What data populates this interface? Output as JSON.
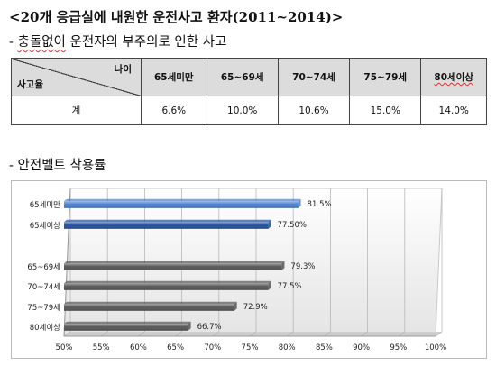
{
  "header": {
    "title": "<20개 응급실에 내원한 운전사고 환자(2011~2014)>",
    "subtitle_prefix": "- ",
    "subtitle_squiggle": "충돌없이",
    "subtitle_rest": " 운전자의 부주의로 인한 사고"
  },
  "table": {
    "corner_top": "나이",
    "corner_bottom": "사고율",
    "headers": [
      "65세미만",
      "65~69세",
      "70~74세",
      "75~79세",
      "80세이상"
    ],
    "row_label": "계",
    "values": [
      "6.6%",
      "10.0%",
      "10.6%",
      "15.0%",
      "14.0%"
    ]
  },
  "section2": {
    "title": "- 안전벨트 착용률"
  },
  "chart_data": {
    "type": "bar",
    "orientation": "horizontal",
    "title": "",
    "xlim": [
      50,
      100
    ],
    "xticks": [
      "50%",
      "55%",
      "60%",
      "65%",
      "70%",
      "75%",
      "80%",
      "85%",
      "90%",
      "95%",
      "100%"
    ],
    "grid": true,
    "categories": [
      "65세미만",
      "65세이상",
      "65~69세",
      "70~74세",
      "75~79세",
      "80세이상"
    ],
    "values": [
      81.5,
      77.5,
      79.3,
      77.5,
      72.9,
      66.7
    ],
    "value_labels": [
      "81.5%",
      "77.50%",
      "79.3%",
      "77.5%",
      "72.9%",
      "66.7%"
    ],
    "bar_colors": [
      "#4a7fd0",
      "#1f4f9c",
      "#555555",
      "#555555",
      "#555555",
      "#555555"
    ]
  }
}
